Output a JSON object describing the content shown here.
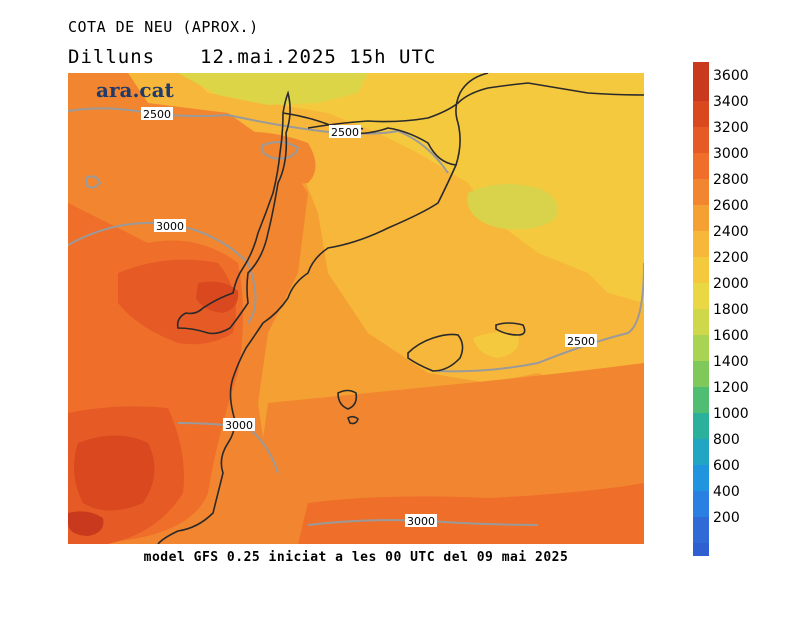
{
  "header": {
    "title": "COTA DE NEU (APROX.)",
    "day": "Dilluns",
    "datetime": "12.mai.2025 15h UTC"
  },
  "map": {
    "logo": "ara.cat",
    "contours": [
      {
        "label": "2500"
      },
      {
        "label": "2500"
      },
      {
        "label": "3000"
      },
      {
        "label": "2500"
      },
      {
        "label": "3000"
      },
      {
        "label": "3000"
      }
    ]
  },
  "colorbar": {
    "levels": [
      {
        "label": "3600",
        "color": "#c8391d"
      },
      {
        "label": "3400",
        "color": "#d9481f"
      },
      {
        "label": "3200",
        "color": "#e65a25"
      },
      {
        "label": "3000",
        "color": "#ef6e2a"
      },
      {
        "label": "2800",
        "color": "#f2852f"
      },
      {
        "label": "2600",
        "color": "#f5a033"
      },
      {
        "label": "2400",
        "color": "#f7b73a"
      },
      {
        "label": "2200",
        "color": "#f4c93e"
      },
      {
        "label": "2000",
        "color": "#e9d744"
      },
      {
        "label": "1800",
        "color": "#cfd84b"
      },
      {
        "label": "1600",
        "color": "#a9d352"
      },
      {
        "label": "1400",
        "color": "#7fc85a"
      },
      {
        "label": "1200",
        "color": "#4fbd72"
      },
      {
        "label": "1000",
        "color": "#2bb19b"
      },
      {
        "label": "800",
        "color": "#21a5c2"
      },
      {
        "label": "600",
        "color": "#2194e0"
      },
      {
        "label": "400",
        "color": "#2a7fe2"
      },
      {
        "label": "200",
        "color": "#2f6ad6"
      }
    ],
    "bottom_color": "#2f5fd0"
  },
  "footer": {
    "text": "model GFS 0.25 iniciat a les 00 UTC del 09 mai 2025"
  }
}
